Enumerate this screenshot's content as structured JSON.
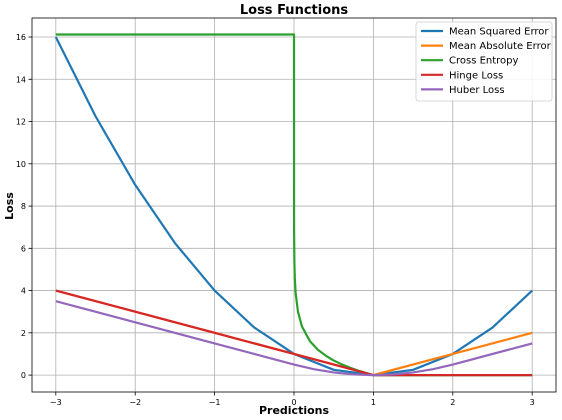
{
  "chart_data": {
    "type": "line",
    "title": "Loss Functions",
    "xlabel": "Predictions",
    "ylabel": "Loss",
    "xlim": [
      -3.3,
      3.3
    ],
    "ylim": [
      -0.8,
      16.9
    ],
    "xticks": [
      -3,
      -2,
      -1,
      0,
      1,
      2,
      3
    ],
    "xtick_labels": [
      "−3",
      "−2",
      "−1",
      "0",
      "1",
      "2",
      "3"
    ],
    "yticks": [
      0,
      2,
      4,
      6,
      8,
      10,
      12,
      14,
      16
    ],
    "ytick_labels": [
      "0",
      "2",
      "4",
      "6",
      "8",
      "10",
      "12",
      "14",
      "16"
    ],
    "grid": true,
    "legend_position": "top-right",
    "series": [
      {
        "name": "Mean Squared Error",
        "color": "#1f77b4",
        "x": [
          -3.0,
          -2.5,
          -2.0,
          -1.5,
          -1.0,
          -0.5,
          0.0,
          0.5,
          1.0,
          1.5,
          2.0,
          2.5,
          3.0
        ],
        "y": [
          16.0,
          12.25,
          9.0,
          6.25,
          4.0,
          2.25,
          1.0,
          0.25,
          0.0,
          0.25,
          1.0,
          2.25,
          4.0
        ]
      },
      {
        "name": "Mean Absolute Error",
        "color": "#ff7f0e",
        "x": [
          -3.0,
          -2.0,
          -1.0,
          0.0,
          1.0,
          2.0,
          3.0
        ],
        "y": [
          4.0,
          3.0,
          2.0,
          1.0,
          0.0,
          1.0,
          2.0
        ]
      },
      {
        "name": "Cross Entropy",
        "color": "#2ca02c",
        "x": [
          -3.0,
          -1.0,
          -0.01,
          0.0,
          0.001,
          0.005,
          0.01,
          0.02,
          0.05,
          0.1,
          0.2,
          0.3,
          0.4,
          0.5,
          0.6,
          0.7,
          0.8,
          0.9,
          0.95,
          1.0,
          1.5,
          2.0,
          2.5,
          3.0
        ],
        "y": [
          16.12,
          16.12,
          16.12,
          16.12,
          6.91,
          5.3,
          4.61,
          3.91,
          3.0,
          2.3,
          1.61,
          1.2,
          0.92,
          0.69,
          0.51,
          0.36,
          0.22,
          0.11,
          0.05,
          0.0,
          0.0,
          0.0,
          0.0,
          0.0
        ]
      },
      {
        "name": "Hinge Loss",
        "color": "#d62728",
        "x": [
          -3.0,
          -2.0,
          -1.0,
          0.0,
          1.0,
          2.0,
          3.0
        ],
        "y": [
          4.0,
          3.0,
          2.0,
          1.0,
          0.0,
          0.0,
          0.0
        ]
      },
      {
        "name": "Huber Loss",
        "color": "#9467bd",
        "x": [
          -3.0,
          -2.0,
          -1.0,
          0.0,
          0.25,
          0.5,
          0.75,
          1.0,
          1.25,
          1.5,
          1.75,
          2.0,
          3.0
        ],
        "y": [
          3.5,
          2.5,
          1.5,
          0.5,
          0.28125,
          0.125,
          0.03125,
          0.0,
          0.03125,
          0.125,
          0.28125,
          0.5,
          1.5
        ]
      }
    ]
  }
}
